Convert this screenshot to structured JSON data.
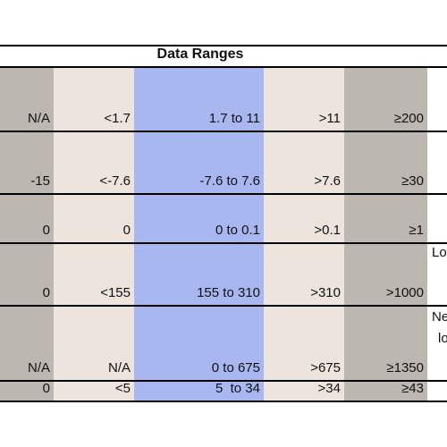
{
  "header": {
    "title": "Data Ranges"
  },
  "table": {
    "rows": [
      {
        "cells": [
          "N/A",
          "<1.7",
          "1.7 to 11",
          ">11",
          "≥200"
        ]
      },
      {
        "cells": [
          "-15",
          "<-7.6",
          "-7.6 to 7.6",
          ">7.6",
          "≥30"
        ]
      },
      {
        "cells": [
          "0",
          "0",
          "0 to 0.1",
          ">0.1",
          "≥1"
        ]
      },
      {
        "cells": [
          "0",
          "<155",
          "155 to 310",
          ">310",
          ">1000"
        ],
        "note": [
          "Lov"
        ]
      },
      {
        "cells": [
          "N/A",
          "N/A",
          "0 to 675",
          ">675",
          "≥1350"
        ],
        "note": [
          "Ne",
          "lo"
        ]
      },
      {
        "cells": [
          "0",
          "<5",
          "5  to 34",
          ">34",
          "≥43"
        ]
      }
    ]
  }
}
